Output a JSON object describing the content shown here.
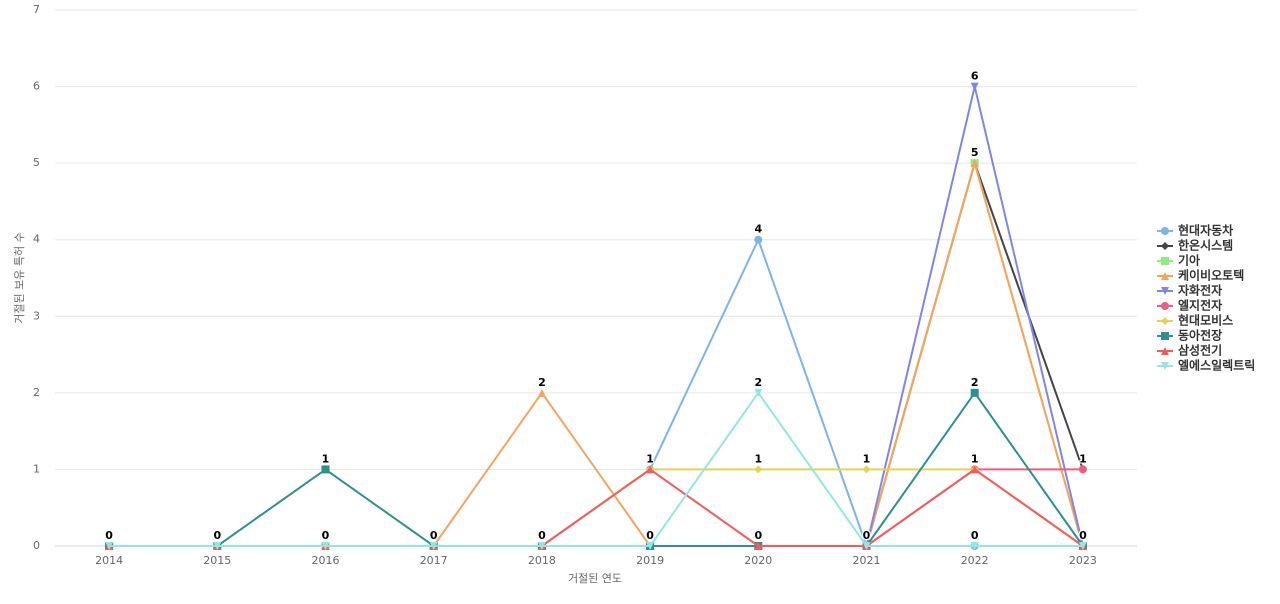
{
  "chart_data": {
    "type": "line",
    "x_label": "거절된 연도",
    "y_label": "거절된 보유 특허 수",
    "categories": [
      "2014",
      "2015",
      "2016",
      "2017",
      "2018",
      "2019",
      "2020",
      "2021",
      "2022",
      "2023"
    ],
    "ylim": [
      0,
      7
    ],
    "yticks": [
      0,
      1,
      2,
      3,
      4,
      5,
      6,
      7
    ],
    "grid": true,
    "legend": "right",
    "series": [
      {
        "name": "현대자동차",
        "color": "#7cb5ec",
        "values": [
          0,
          0,
          0,
          0,
          0,
          1,
          4,
          0,
          0,
          0
        ]
      },
      {
        "name": "한온시스템",
        "color": "#434348",
        "values": [
          0,
          0,
          0,
          0,
          0,
          0,
          0,
          0,
          5,
          1
        ]
      },
      {
        "name": "기아",
        "color": "#90ed7d",
        "values": [
          0,
          0,
          0,
          0,
          0,
          0,
          0,
          0,
          5,
          0
        ]
      },
      {
        "name": "케이비오토텍",
        "color": "#f7a35c",
        "values": [
          0,
          0,
          0,
          0,
          2,
          0,
          0,
          0,
          5,
          0
        ]
      },
      {
        "name": "자화전자",
        "color": "#8085e9",
        "values": [
          0,
          0,
          0,
          0,
          0,
          0,
          0,
          0,
          6,
          0
        ]
      },
      {
        "name": "엘지전자",
        "color": "#f15c80",
        "values": [
          0,
          0,
          0,
          0,
          0,
          0,
          0,
          0,
          1,
          1
        ]
      },
      {
        "name": "현대모비스",
        "color": "#e4d354",
        "values": [
          0,
          0,
          0,
          0,
          0,
          1,
          1,
          1,
          1,
          0
        ]
      },
      {
        "name": "동아전장",
        "color": "#2b908f",
        "values": [
          0,
          0,
          1,
          0,
          0,
          0,
          0,
          0,
          2,
          0
        ]
      },
      {
        "name": "삼성전기",
        "color": "#f45b5b",
        "values": [
          0,
          0,
          0,
          0,
          0,
          1,
          0,
          0,
          1,
          0
        ]
      },
      {
        "name": "엘에스일렉트릭",
        "color": "#91e8e1",
        "values": [
          0,
          0,
          0,
          0,
          0,
          0,
          2,
          0,
          0,
          0
        ]
      }
    ]
  }
}
